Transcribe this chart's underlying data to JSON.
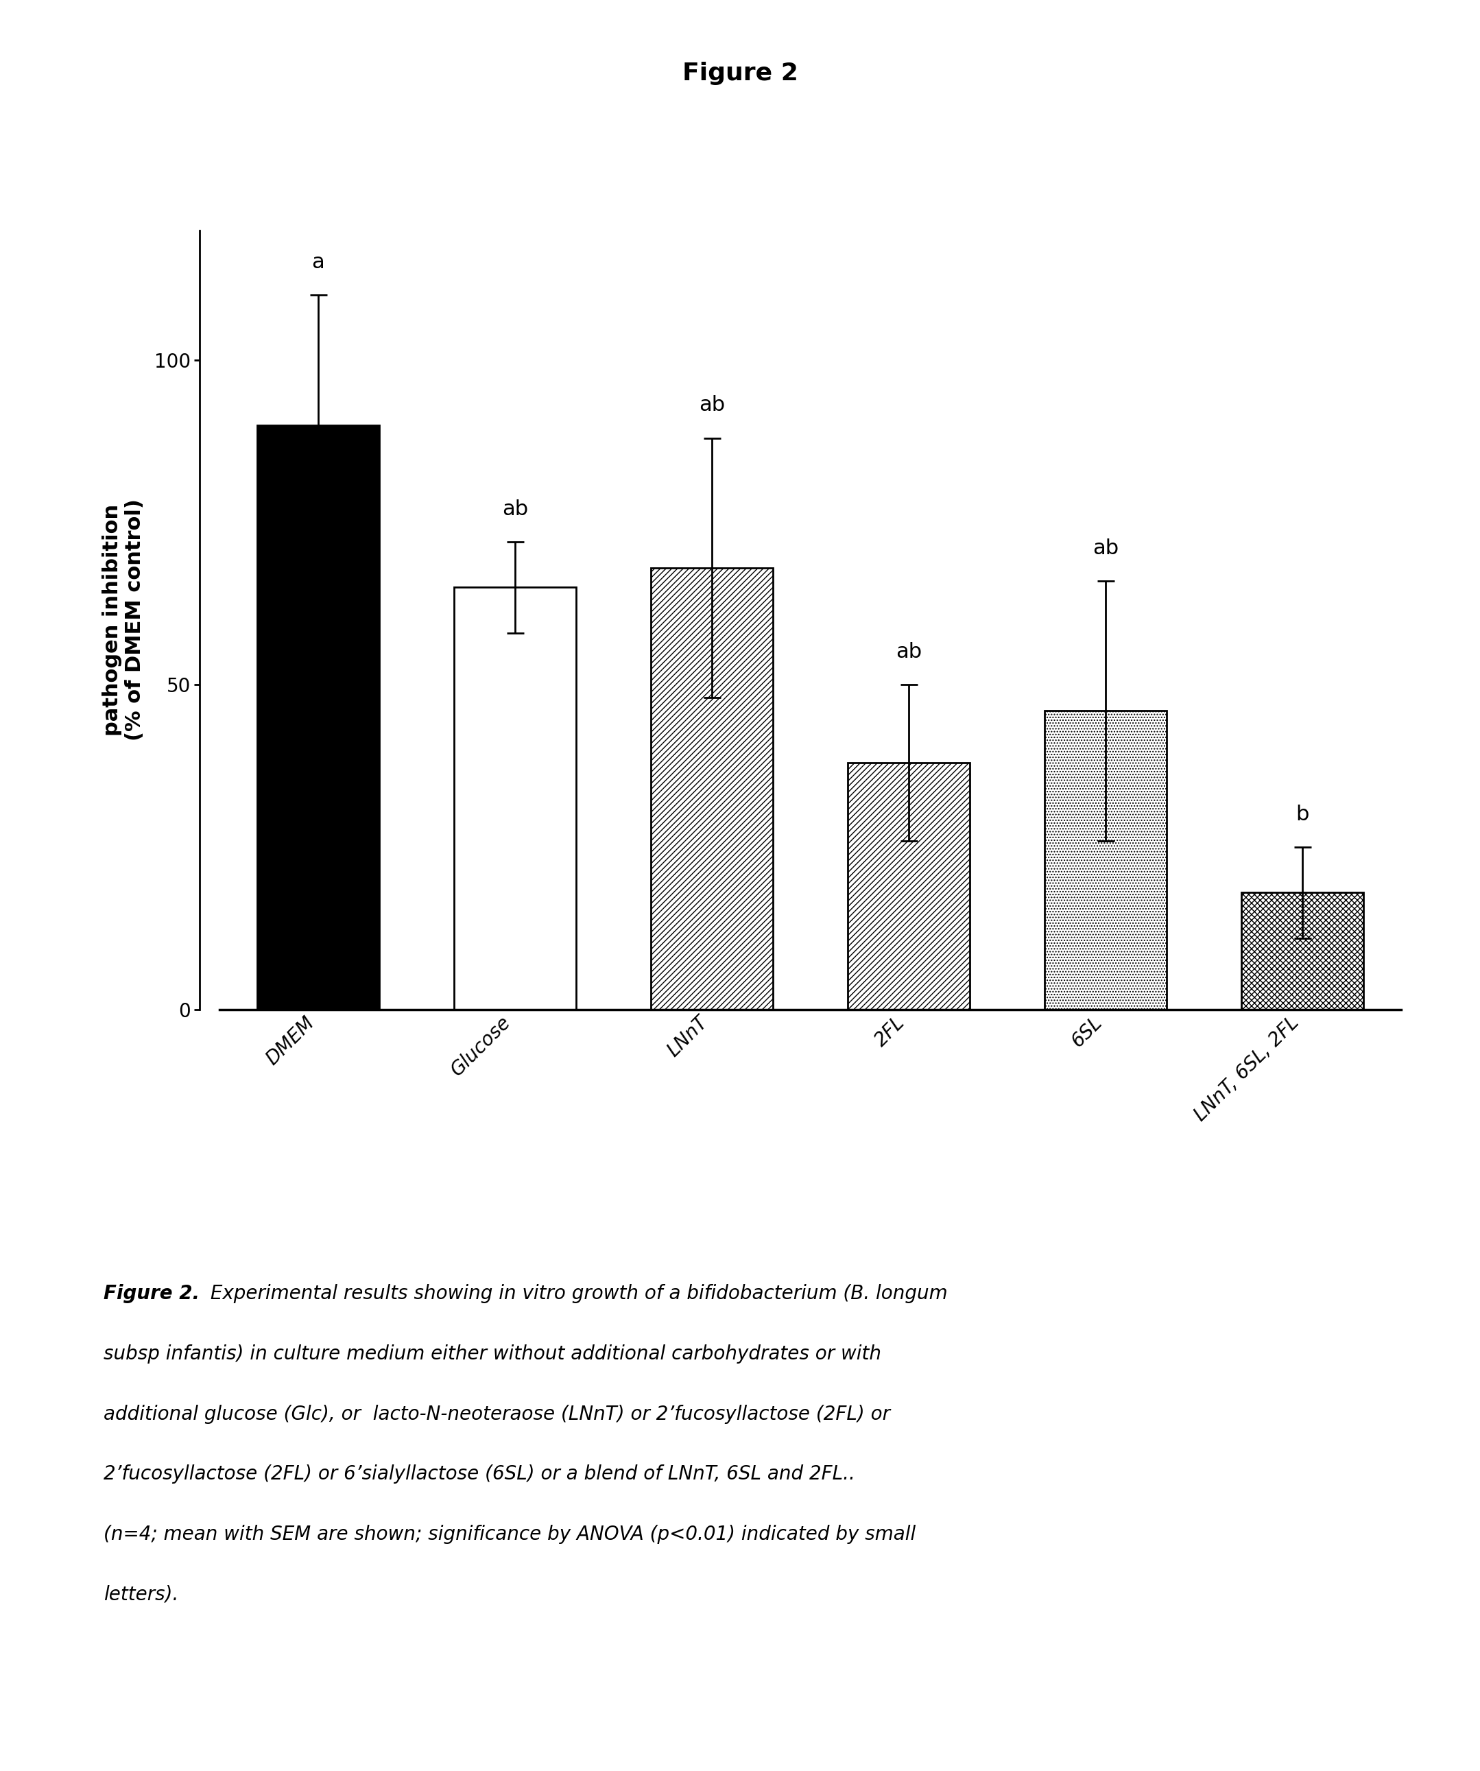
{
  "title": "Figure 2",
  "categories": [
    "DMEM",
    "Glucose",
    "LNnT",
    "2FL",
    "6SL",
    "LNnT, 6SL, 2FL"
  ],
  "values": [
    90.0,
    65.0,
    68.0,
    38.0,
    46.0,
    18.0
  ],
  "errors": [
    20.0,
    7.0,
    20.0,
    12.0,
    20.0,
    7.0
  ],
  "significance_labels": [
    "a",
    "ab",
    "ab",
    "ab",
    "ab",
    "b"
  ],
  "ylabel": "pathogen inhibition\n(% of DMEM control)",
  "ylim": [
    0,
    120
  ],
  "yticks": [
    0,
    50,
    100
  ],
  "hatch_patterns": [
    "",
    "",
    "////",
    "////",
    "....",
    "xxxx"
  ],
  "bar_facecolors": [
    "#000000",
    "#ffffff",
    "#ffffff",
    "#ffffff",
    "#ffffff",
    "#ffffff"
  ],
  "bar_edgecolors": [
    "#000000",
    "#000000",
    "#000000",
    "#000000",
    "#000000",
    "#000000"
  ],
  "background_color": "#ffffff",
  "bar_width": 0.62,
  "title_fontsize": 26,
  "axis_label_fontsize": 22,
  "tick_fontsize": 20,
  "sig_fontsize": 22,
  "caption_fontsize": 20,
  "caption_line1_bold": "Figure 2.",
  "caption_lines": [
    " Experimental results showing in vitro growth of a bifidobacterium (B. longum",
    "subsp infantis) in culture medium either without additional carbohydrates or with",
    "additional glucose (Glc), or  lacto-N-neoteraose (LNnT) or 2’fucosyllactose (2FL) or",
    "2’fucosyllactose (2FL) or 6’sialyllactose (6SL) or a blend of LNnT, 6SL and 2FL..",
    "(n=4; mean with SEM are shown; significance by ANOVA (p<0.01) indicated by small",
    "letters)."
  ]
}
